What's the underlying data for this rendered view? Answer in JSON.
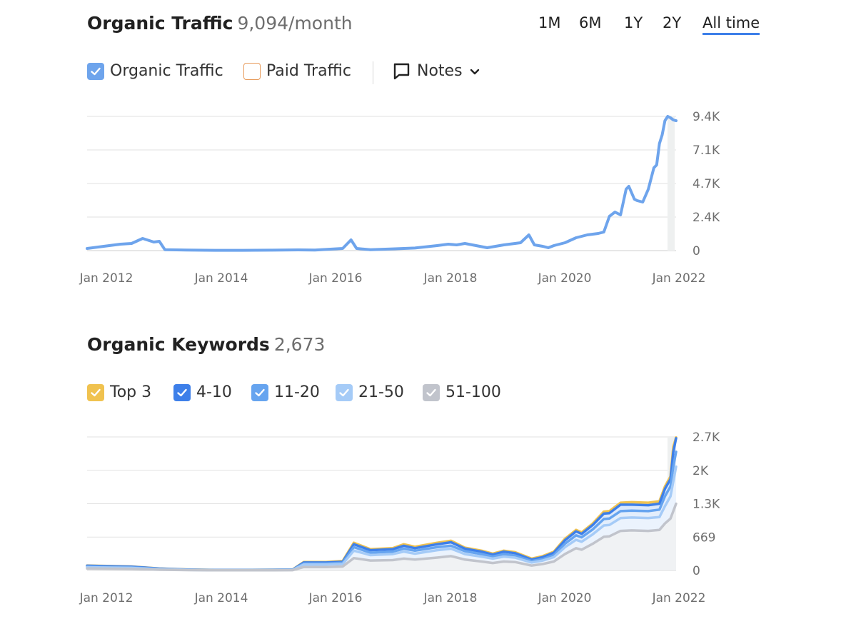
{
  "traffic": {
    "title": "Organic Traffic",
    "value": "9,094/month",
    "ranges": [
      "1M",
      "6M",
      "1Y",
      "2Y",
      "All time"
    ],
    "active_range": "All time",
    "legend": {
      "organic": "Organic Traffic",
      "paid": "Paid Traffic",
      "notes": "Notes"
    }
  },
  "keywords": {
    "title": "Organic Keywords",
    "value": "2,673",
    "legend": [
      "Top 3",
      "4-10",
      "11-20",
      "21-50",
      "51-100"
    ]
  },
  "colors": {
    "organic_line": "#6ea4ec",
    "paid_box": "#e79a5a",
    "top3": "#f0c24f",
    "pos4_10": "#3d7fe9",
    "pos11_20": "#66a4ef",
    "pos21_50": "#a5cbf7",
    "pos51_100": "#c1c4cc",
    "grid": "#e2e2e2",
    "accent": "#3d7fe9"
  },
  "chart_data": [
    {
      "type": "line",
      "title": "Organic Traffic",
      "x_tick_labels": [
        "Jan 2012",
        "Jan 2014",
        "Jan 2016",
        "Jan 2018",
        "Jan 2020",
        "Jan 2022"
      ],
      "y_tick_labels": [
        "0",
        "2.4K",
        "4.7K",
        "7.1K",
        "9.4K"
      ],
      "ylim": [
        0,
        9400
      ],
      "grid": true,
      "series": [
        {
          "name": "Organic Traffic",
          "x": [
            2011.7,
            2012.0,
            2012.3,
            2012.5,
            2012.7,
            2012.9,
            2013.0,
            2013.1,
            2013.5,
            2014.0,
            2014.5,
            2015.0,
            2015.5,
            2015.8,
            2016.3,
            2016.45,
            2016.55,
            2016.8,
            2017.2,
            2017.6,
            2018.0,
            2018.2,
            2018.35,
            2018.5,
            2018.7,
            2018.9,
            2019.2,
            2019.5,
            2019.65,
            2019.75,
            2019.9,
            2020.0,
            2020.1,
            2020.3,
            2020.5,
            2020.7,
            2020.9,
            2021.0,
            2021.1,
            2021.2,
            2021.3,
            2021.4,
            2021.45,
            2021.55,
            2021.6,
            2021.7,
            2021.8,
            2021.9,
            2021.95,
            2022.0,
            2022.05,
            2022.1,
            2022.15,
            2022.2,
            2022.25,
            2022.3
          ],
          "y": [
            150,
            300,
            450,
            500,
            850,
            600,
            650,
            60,
            40,
            20,
            20,
            30,
            50,
            40,
            150,
            750,
            150,
            60,
            120,
            180,
            350,
            450,
            400,
            500,
            350,
            200,
            400,
            550,
            1100,
            400,
            300,
            200,
            350,
            550,
            900,
            1100,
            1200,
            1300,
            2400,
            2700,
            2500,
            4300,
            4500,
            3600,
            3500,
            3400,
            4300,
            5800,
            6000,
            7500,
            8100,
            9100,
            9400,
            9300,
            9150,
            9094
          ]
        }
      ]
    },
    {
      "type": "area",
      "title": "Organic Keywords",
      "x_tick_labels": [
        "Jan 2012",
        "Jan 2014",
        "Jan 2016",
        "Jan 2018",
        "Jan 2020",
        "Jan 2022"
      ],
      "y_tick_labels": [
        "0",
        "669",
        "1.3K",
        "2K",
        "2.7K"
      ],
      "ylim": [
        0,
        2700
      ],
      "grid": true,
      "x": [
        2011.7,
        2012.5,
        2013.0,
        2013.5,
        2014.0,
        2014.5,
        2015.0,
        2015.4,
        2015.6,
        2016.0,
        2016.3,
        2016.5,
        2016.8,
        2017.2,
        2017.4,
        2017.6,
        2018.0,
        2018.25,
        2018.5,
        2018.8,
        2019.0,
        2019.2,
        2019.4,
        2019.7,
        2019.9,
        2020.1,
        2020.3,
        2020.5,
        2020.6,
        2020.8,
        2021.0,
        2021.1,
        2021.3,
        2021.5,
        2021.8,
        2022.0,
        2022.1,
        2022.2,
        2022.25,
        2022.3
      ],
      "series": [
        {
          "name": "Top 3",
          "values": [
            100,
            80,
            40,
            20,
            10,
            10,
            15,
            20,
            170,
            170,
            190,
            560,
            430,
            450,
            530,
            480,
            560,
            600,
            460,
            400,
            340,
            400,
            370,
            240,
            290,
            380,
            640,
            820,
            770,
            950,
            1190,
            1200,
            1370,
            1380,
            1370,
            1400,
            1700,
            1900,
            2500,
            2690
          ]
        },
        {
          "name": "4-10",
          "values": [
            95,
            75,
            38,
            18,
            9,
            9,
            14,
            18,
            160,
            160,
            175,
            530,
            410,
            430,
            500,
            450,
            530,
            570,
            440,
            380,
            320,
            380,
            350,
            220,
            270,
            360,
            610,
            790,
            740,
            920,
            1150,
            1160,
            1330,
            1330,
            1320,
            1350,
            1650,
            1850,
            2400,
            2673
          ]
        },
        {
          "name": "11-20",
          "values": [
            80,
            60,
            30,
            14,
            7,
            7,
            10,
            14,
            140,
            140,
            155,
            470,
            360,
            380,
            440,
            400,
            470,
            500,
            390,
            330,
            280,
            330,
            300,
            190,
            230,
            310,
            540,
            710,
            670,
            830,
            1040,
            1050,
            1200,
            1210,
            1200,
            1230,
            1500,
            1700,
            2100,
            2400
          ]
        },
        {
          "name": "21-50",
          "values": [
            65,
            50,
            24,
            11,
            5,
            5,
            8,
            10,
            120,
            120,
            130,
            400,
            310,
            330,
            380,
            340,
            410,
            440,
            330,
            280,
            240,
            280,
            260,
            160,
            200,
            270,
            470,
            620,
            580,
            730,
            910,
            920,
            1060,
            1070,
            1060,
            1080,
            1300,
            1500,
            1800,
            2100
          ]
        },
        {
          "name": "51-100",
          "values": [
            40,
            30,
            14,
            7,
            3,
            3,
            5,
            6,
            70,
            70,
            80,
            250,
            200,
            210,
            240,
            220,
            260,
            290,
            220,
            180,
            150,
            180,
            170,
            100,
            130,
            180,
            330,
            450,
            420,
            540,
            680,
            690,
            800,
            810,
            800,
            820,
            950,
            1050,
            1200,
            1350
          ]
        }
      ]
    }
  ]
}
